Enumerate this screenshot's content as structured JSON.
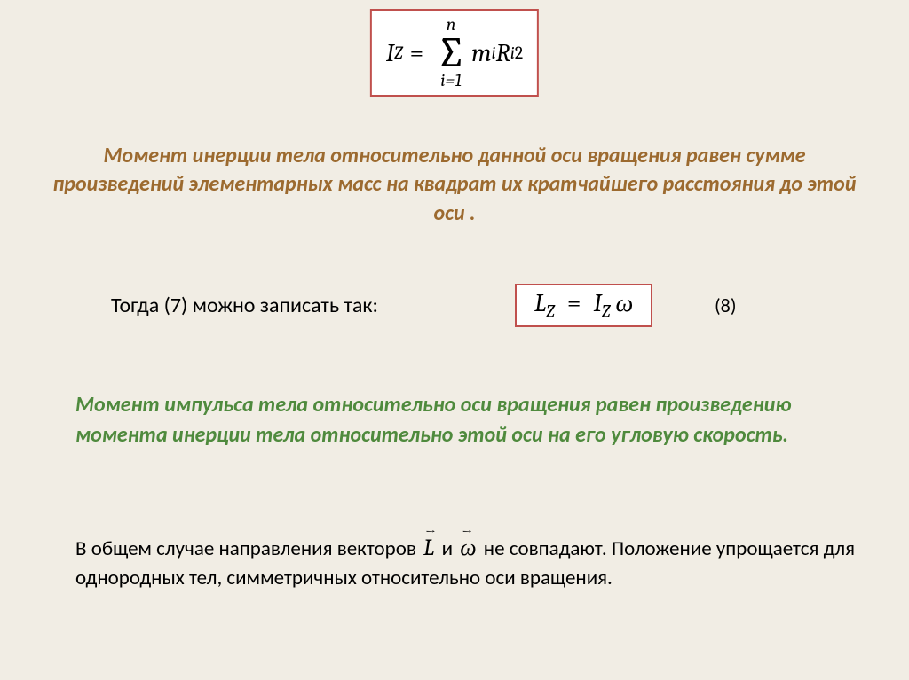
{
  "formula1": {
    "lhs": "I",
    "lhs_sub": "Z",
    "eq": "=",
    "sum_top": "n",
    "sum_sigma": "∑",
    "sum_bot": "i=1",
    "term_m": "m",
    "term_m_sub": "i",
    "term_R": "R",
    "term_R_sub": "i",
    "term_R_sup": "2",
    "border_color": "#c0504d"
  },
  "definition1": {
    "text": "Момент инерции тела относительно данной оси вращения равен сумме произведений элементарных масс на квадрат их кратчайшего расстояния до  этой оси .",
    "color": "#9c6a2f"
  },
  "line2": {
    "intro": "Тогда (7) можно записать так:",
    "eq_number": "(8)"
  },
  "formula2": {
    "lhs": "L",
    "lhs_sub": "Z",
    "eq": "=",
    "rhs_I": "I",
    "rhs_I_sub": "Z",
    "rhs_omega": "ω",
    "border_color": "#c0504d"
  },
  "definition2": {
    "text": "Момент импульса тела относительно оси вращения равен произведению момента инерции тела относительно этой оси на  его угловую скорость.",
    "color": "#4f8a3d"
  },
  "para": {
    "t1": "В общем случае направления векторов ",
    "vec1": "L",
    "vec1_arrow": "→",
    "t2": " и ",
    "vec2": "ω",
    "vec2_arrow": "→",
    "t3": "   не совпадают. Положение упрощается для однородных тел, симметричных относительно оси вращения."
  },
  "style": {
    "background": "#f1ede4",
    "body_font": "Calibri",
    "math_font": "Cambria Math"
  }
}
